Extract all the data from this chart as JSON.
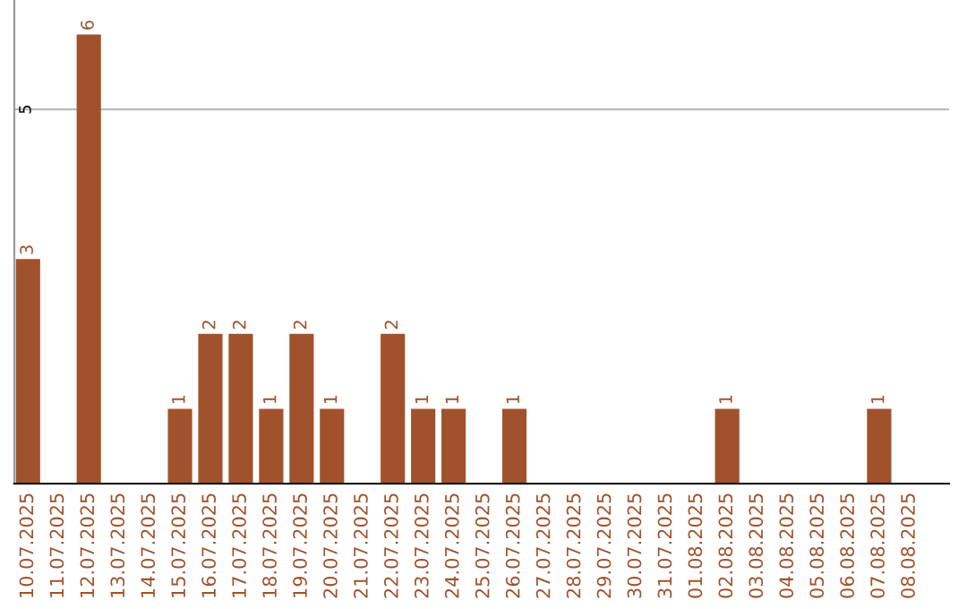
{
  "chart_data": {
    "type": "bar",
    "categories": [
      "10.07.2025",
      "11.07.2025",
      "12.07.2025",
      "13.07.2025",
      "14.07.2025",
      "15.07.2025",
      "16.07.2025",
      "17.07.2025",
      "18.07.2025",
      "19.07.2025",
      "20.07.2025",
      "21.07.2025",
      "22.07.2025",
      "23.07.2025",
      "24.07.2025",
      "25.07.2025",
      "26.07.2025",
      "27.07.2025",
      "28.07.2025",
      "29.07.2025",
      "30.07.2025",
      "31.07.2025",
      "01.08.2025",
      "02.08.2025",
      "03.08.2025",
      "04.08.2025",
      "05.08.2025",
      "06.08.2025",
      "07.08.2025",
      "08.08.2025"
    ],
    "values": [
      3,
      0,
      6,
      0,
      0,
      1,
      2,
      2,
      1,
      2,
      1,
      0,
      2,
      1,
      1,
      0,
      1,
      0,
      0,
      0,
      0,
      0,
      0,
      1,
      0,
      0,
      0,
      0,
      1,
      0
    ],
    "value_labels": [
      "3",
      null,
      "6",
      null,
      null,
      "1",
      "2",
      "2",
      "1",
      "2",
      "1",
      null,
      "2",
      "1",
      "1",
      null,
      "1",
      null,
      null,
      null,
      null,
      null,
      null,
      "1",
      null,
      null,
      null,
      null,
      "1",
      null
    ],
    "color": "#a0522d",
    "ylim": [
      0,
      6.46
    ],
    "yticks": [
      5
    ],
    "grid": "y"
  }
}
